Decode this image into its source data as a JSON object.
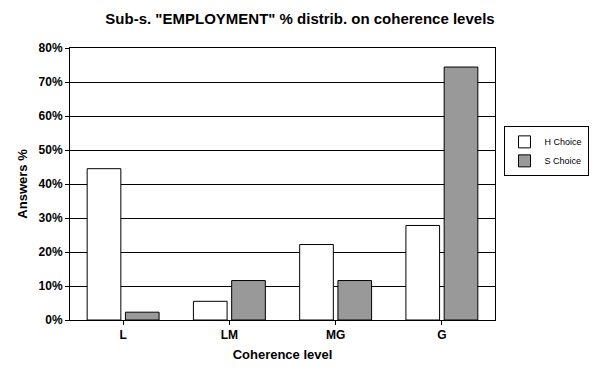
{
  "chart_data": {
    "type": "bar",
    "title": "Sub-s. \"EMPLOYMENT\" % distrib. on coherence levels",
    "x_label": "Coherence level",
    "y_label": "Answers %",
    "categories": [
      "L",
      "LM",
      "MG",
      "G"
    ],
    "series": [
      {
        "name": "H Choice",
        "color": "#ffffff",
        "values": [
          44.5,
          5.5,
          22.2,
          27.8
        ]
      },
      {
        "name": "S Choice",
        "color": "#999999",
        "values": [
          2.3,
          11.6,
          11.6,
          74.4
        ]
      }
    ],
    "ylim": [
      0,
      80
    ],
    "yticks": [
      {
        "value": 0,
        "label": "0%"
      },
      {
        "value": 10,
        "label": "10%"
      },
      {
        "value": 20,
        "label": "20%"
      },
      {
        "value": 30,
        "label": "30%"
      },
      {
        "value": 40,
        "label": "40%"
      },
      {
        "value": 50,
        "label": "50%"
      },
      {
        "value": 60,
        "label": "60%"
      },
      {
        "value": 70,
        "label": "70%"
      },
      {
        "value": 80,
        "label": "80%"
      }
    ],
    "grid": true,
    "legend": "right"
  }
}
